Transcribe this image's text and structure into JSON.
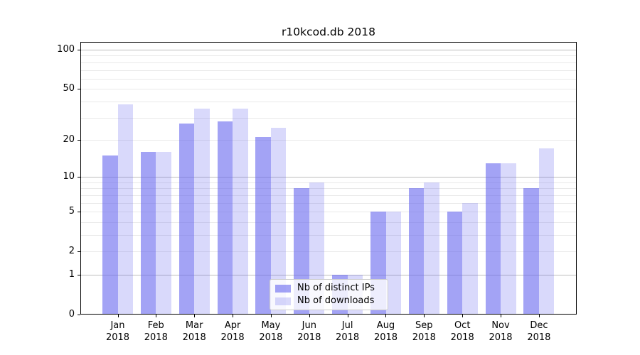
{
  "title": "r10kcod.db 2018",
  "legend": {
    "items": [
      {
        "label": "Nb of distinct IPs",
        "css_color": "rgba(102,102,238,0.6)"
      },
      {
        "label": "Nb of downloads",
        "css_color": "rgba(102,102,238,0.25)"
      }
    ],
    "position": "lower center inside axes"
  },
  "colors": {
    "bar_base": "#6666ee",
    "major_grid": "#bdbdbd",
    "minor_grid": "#e9e9e9",
    "axes": "#000000",
    "background": "#ffffff"
  },
  "chart_data": {
    "type": "bar",
    "title": "r10kcod.db 2018",
    "categories": [
      "Jan 2018",
      "Feb 2018",
      "Mar 2018",
      "Apr 2018",
      "May 2018",
      "Jun 2018",
      "Jul 2018",
      "Aug 2018",
      "Sep 2018",
      "Oct 2018",
      "Nov 2018",
      "Dec 2018"
    ],
    "series": [
      {
        "name": "Nb of distinct IPs",
        "css_color": "rgba(102,102,238,0.6)",
        "values": [
          15,
          16,
          27,
          28,
          21,
          8,
          1,
          5,
          8,
          5,
          13,
          8
        ]
      },
      {
        "name": "Nb of downloads",
        "css_color": "rgba(102,102,238,0.25)",
        "values": [
          38,
          16,
          35,
          35,
          25,
          9,
          1,
          5,
          9,
          6,
          13,
          17
        ]
      }
    ],
    "xlabel": "",
    "ylabel": "",
    "y_scale": "log1p",
    "ylim": [
      0,
      114
    ],
    "y_ticks": [
      0,
      1,
      2,
      5,
      10,
      20,
      50,
      100
    ],
    "y_major_gridlines": [
      1,
      10,
      100
    ],
    "y_minor_gridlines": [
      2,
      3,
      4,
      5,
      6,
      7,
      8,
      9,
      20,
      30,
      40,
      50,
      60,
      70,
      80,
      90
    ],
    "grid": true,
    "legend_position": "lower center inside axes"
  }
}
